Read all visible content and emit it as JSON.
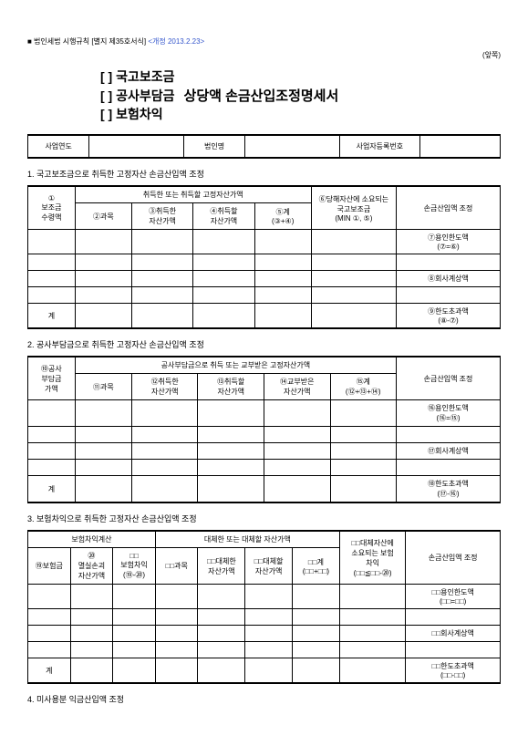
{
  "regulation_prefix": "■ 법인세법 시행규칙 [별지 제35호서식]",
  "regulation_blue": "<개정 2013.2.23>",
  "page_side": "(앞쪽)",
  "bracket_items": [
    "[  ] 국고보조금",
    "[  ] 공사부담금",
    "[  ] 보험차익"
  ],
  "main_title": "상당액 손금산입조정명세서",
  "header_row": {
    "col1": "사업연도",
    "col2": "법인명",
    "col3": "사업자등록번호"
  },
  "section1": {
    "title": "1. 국고보조금으로 취득한 고정자산 손금산입액 조정",
    "h1": "①\n보조금\n수령액",
    "h2": "취득한 또는 취득할 고정자산가액",
    "h3": "⑥당해자산에 소요되는\n국고보조금\n(MIN ①, ⑤)",
    "h4": "손금산입액 조정",
    "sub": [
      "②과목",
      "③취득한\n자산가액",
      "④취득할\n자산가액",
      "⑤계\n(③+④)"
    ],
    "right": [
      "⑦용인한도액\n(⑦=⑥)",
      "⑧회사계상액",
      "⑨한도초과액\n(⑧-⑦)"
    ],
    "sum": "계"
  },
  "section2": {
    "title": "2. 공사부담금으로 취득한 고정자산 손금산입액 조정",
    "h1": "⑩공사\n부담금\n가액",
    "h2": "공사부담금으로 취득 또는 교부받은 고정자산가액",
    "h4": "손금산입액 조정",
    "sub": [
      "⑪과목",
      "⑫취득한\n자산가액",
      "⑬취득할\n자산가액",
      "⑭교부받은\n자산가액",
      "⑮계\n(⑫+⑬+⑭)"
    ],
    "right": [
      "⑯용인한도액\n(⑯=⑮)",
      "⑰회사계상액",
      "⑱한도초과액\n(⑰-⑯)"
    ],
    "sum": "계"
  },
  "section3": {
    "title": "3. 보험차익으로 취득한 고정자산 손금산입액 조정",
    "h1a": "보험차익계산",
    "h1b": "대체한 또는 대체할 자산가액",
    "h1c": "□□대체자산에\n소요되는 보험\n차익\n(□□≦□□-⑳)",
    "h1d": "손금산입액 조정",
    "sub1": [
      "⑲보험금",
      "⑳\n멸실손괴\n자산가액",
      "□□\n보험차익\n(⑲-⑳)"
    ],
    "sub2": [
      "□□과목",
      "□□대체한\n자산가액",
      "□□대체할\n자산가액",
      "□□계\n(□□+□□)"
    ],
    "right": [
      "□□용인한도액\n(□□=□□)",
      "□□회사계상액",
      "□□한도초과액\n(□□-□□)"
    ],
    "sum": "계"
  },
  "section4": {
    "title": "4. 미사용분 익금산입액 조정"
  }
}
